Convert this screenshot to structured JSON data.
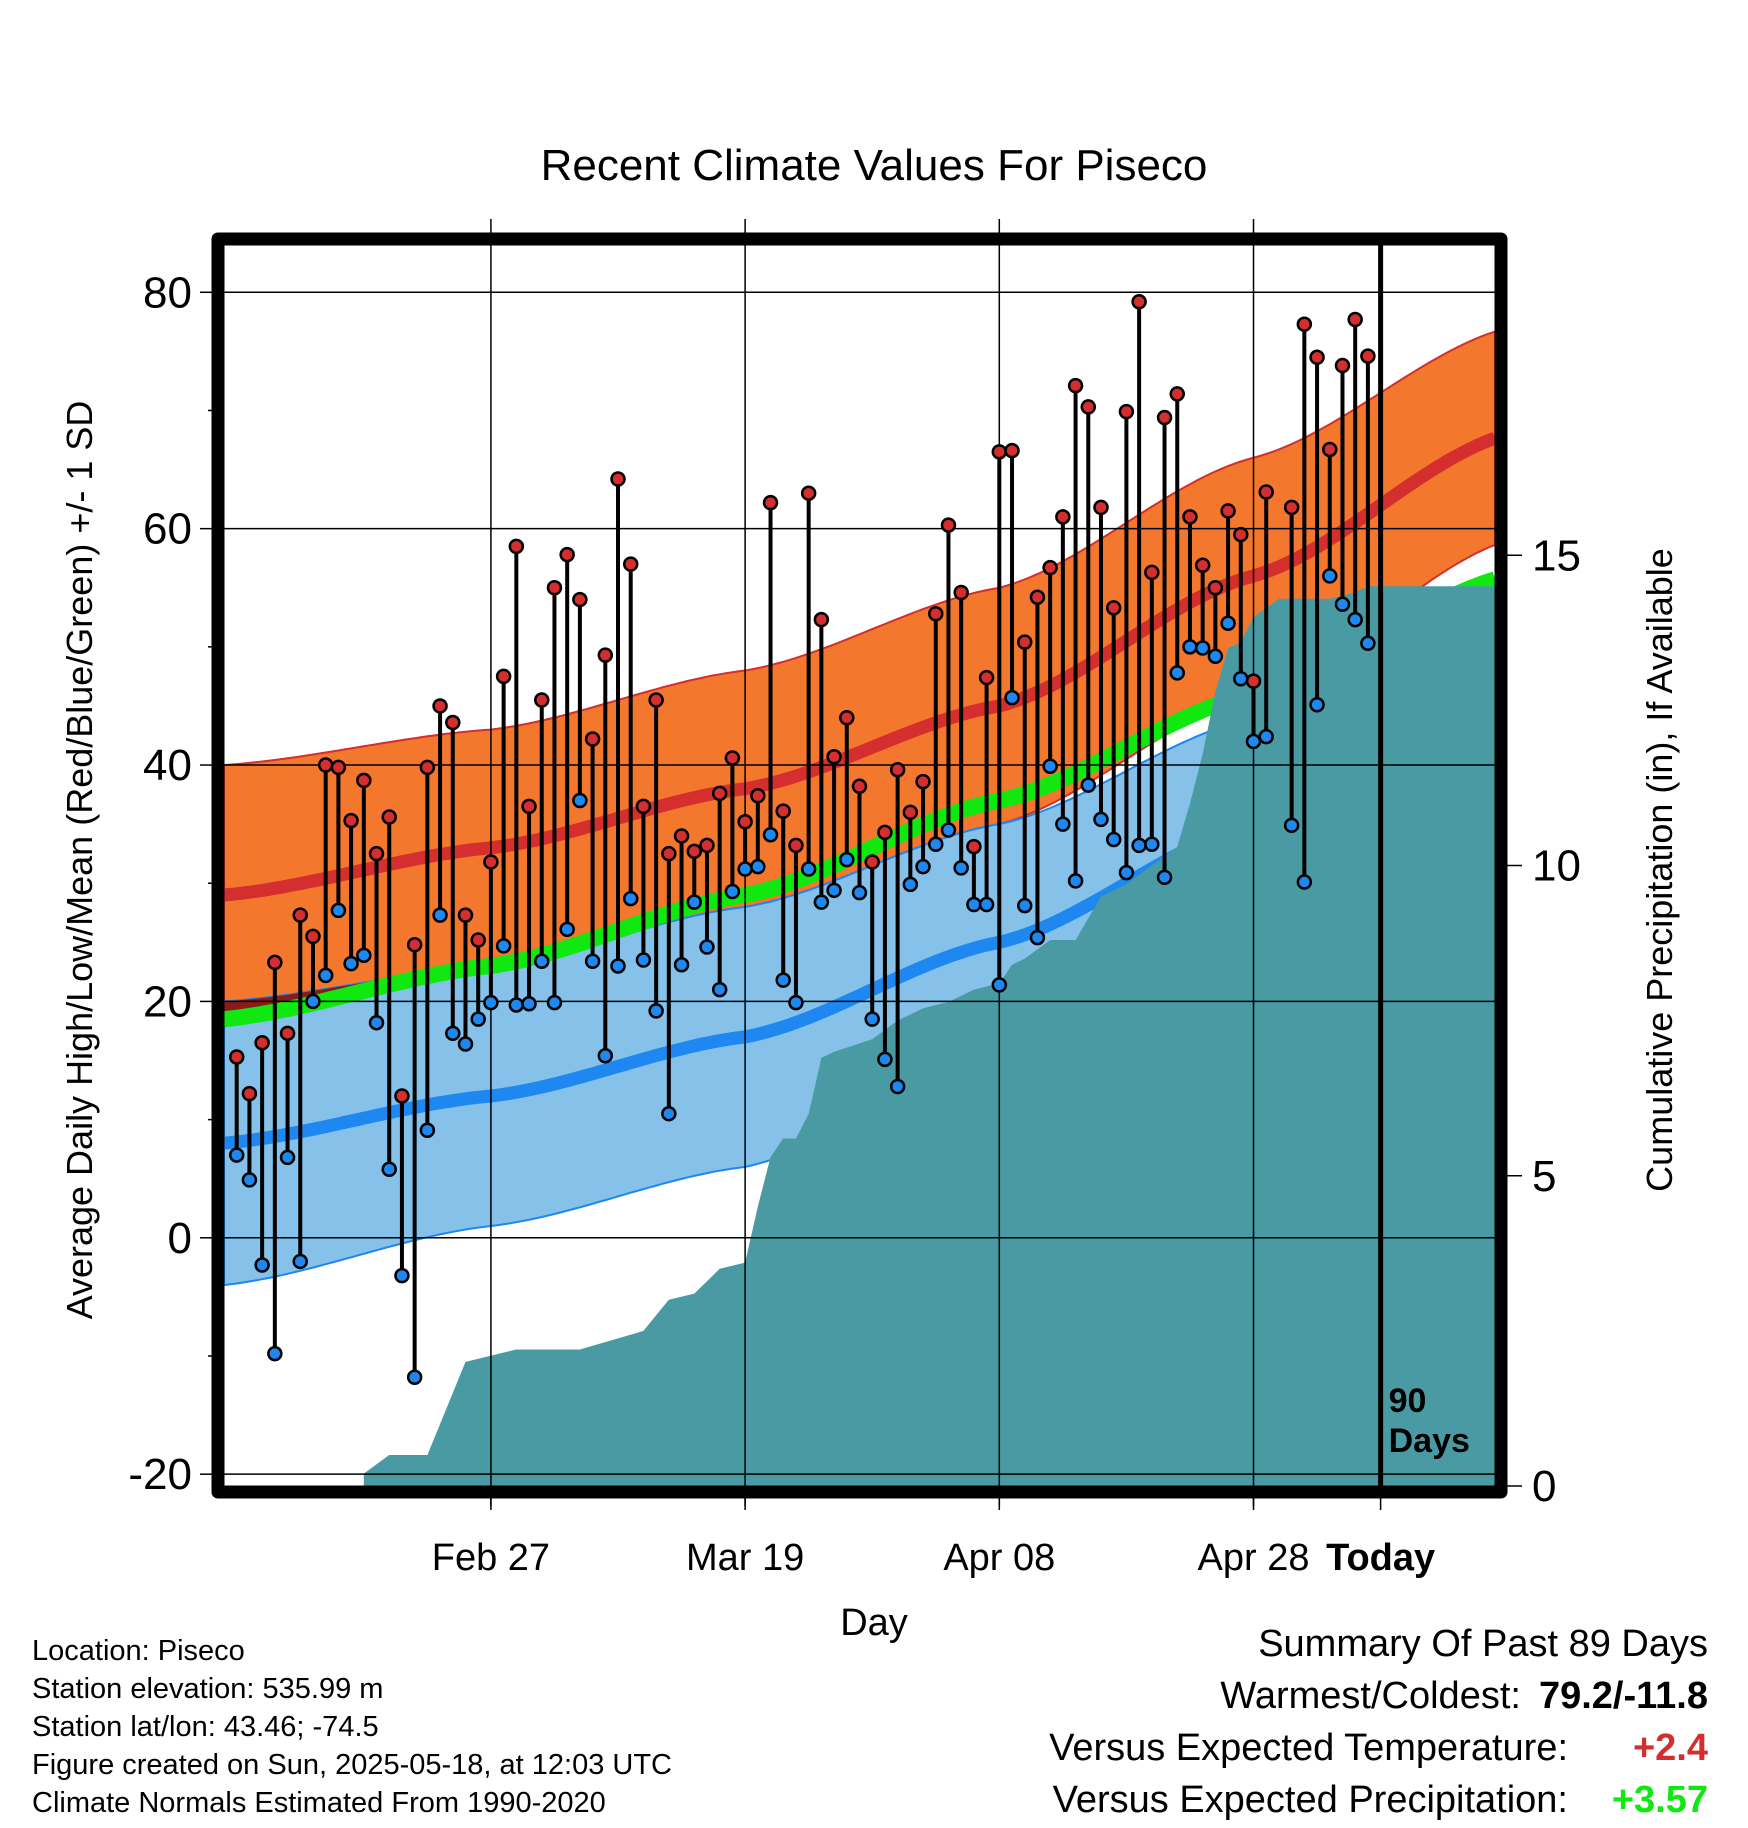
{
  "chart_data": {
    "type": "line",
    "title": "Recent Climate Values For Piseco",
    "xlabel": "Day",
    "ylabel": "Average Daily High/Low/Mean (Red/Blue/Green) +/- 1 SD",
    "y2label": "Cumulative Precipitation (in), If Available",
    "x_ticks": [
      "Feb 27",
      "Mar 19",
      "Apr 08",
      "Apr 28",
      "Today"
    ],
    "y_ticks": [
      "80",
      "60",
      "40",
      "20",
      "0",
      "-20"
    ],
    "y2_ticks": [
      "15",
      "10",
      "5",
      "0"
    ],
    "ylim": [
      -21,
      84
    ],
    "y2lim": [
      0,
      20
    ],
    "x_range_days": [
      -91,
      9
    ],
    "grid": true,
    "today_marker_label": [
      "90",
      "Days"
    ],
    "colors": {
      "high_band": "#f4772e",
      "high_mean": "#d42e2e",
      "overlap": "#8b1a1a",
      "low_band": "#85c1e8",
      "low_mean": "#1e88f0",
      "mean_normal": "#10e810",
      "precip": "#4a9aa4",
      "high_marker": "#d42e2e",
      "low_marker": "#1e88f0"
    },
    "normals": {
      "day": [
        -91,
        -70,
        -50,
        -30,
        -10,
        10
      ],
      "high_mean": [
        29,
        33,
        38,
        45,
        56,
        68
      ],
      "high_sd": [
        11,
        10,
        10,
        10,
        10,
        9
      ],
      "low_mean": [
        8,
        12,
        17,
        25,
        35,
        45
      ],
      "low_sd": [
        12,
        11,
        11,
        10,
        9,
        8
      ],
      "mean": [
        18.5,
        23,
        29,
        37,
        46,
        56
      ]
    },
    "series": [
      {
        "name": "High",
        "x": [
          -90,
          -89,
          -88,
          -87,
          -86,
          -85,
          -84,
          -83,
          -82,
          -81,
          -80,
          -79,
          -78,
          -77,
          -76,
          -75,
          -74,
          -73,
          -72,
          -71,
          -70,
          -69,
          -68,
          -67,
          -66,
          -65,
          -64,
          -63,
          -62,
          -61,
          -60,
          -59,
          -58,
          -57,
          -56,
          -55,
          -54,
          -53,
          -52,
          -51,
          -50,
          -49,
          -48,
          -47,
          -46,
          -45,
          -44,
          -43,
          -42,
          -41,
          -40,
          -39,
          -38,
          -37,
          -36,
          -35,
          -34,
          -33,
          -32,
          -31,
          -30,
          -29,
          -28,
          -27,
          -26,
          -25,
          -24,
          -23,
          -22,
          -21,
          -20,
          -19,
          -18,
          -17,
          -16,
          -15,
          -14,
          -13,
          -12,
          -11,
          -10,
          -9,
          -7,
          -6,
          -5,
          -4,
          -3,
          -2,
          -1
        ],
        "values": [
          15.3,
          12.2,
          16.5,
          23.3,
          17.3,
          27.3,
          25.5,
          40.0,
          39.8,
          35.3,
          38.7,
          32.5,
          35.6,
          12.0,
          24.8,
          39.8,
          45.0,
          43.6,
          27.3,
          25.2,
          31.8,
          47.5,
          58.5,
          36.5,
          45.5,
          55.0,
          57.8,
          54.0,
          42.2,
          49.3,
          64.2,
          57.0,
          36.5,
          45.5,
          32.5,
          34.0,
          32.7,
          33.2,
          37.6,
          40.6,
          35.2,
          37.4,
          62.2,
          36.1,
          33.2,
          63.0,
          52.3,
          40.7,
          44.0,
          38.2,
          31.8,
          34.3,
          39.6,
          36.0,
          38.6,
          52.8,
          60.3,
          54.6,
          33.1,
          47.4,
          66.5,
          66.6,
          50.4,
          54.2,
          56.7,
          61.0,
          72.1,
          70.3,
          61.8,
          53.3,
          69.9,
          79.2,
          56.3,
          69.4,
          71.4,
          61.0,
          56.9,
          55.0,
          61.5,
          59.5,
          47.1,
          63.1,
          61.8,
          77.3,
          74.5,
          66.7,
          73.8,
          77.7,
          74.6
        ]
      },
      {
        "name": "Low",
        "x": [
          -90,
          -89,
          -88,
          -87,
          -86,
          -85,
          -84,
          -83,
          -82,
          -81,
          -80,
          -79,
          -78,
          -77,
          -76,
          -75,
          -74,
          -73,
          -72,
          -71,
          -70,
          -69,
          -68,
          -67,
          -66,
          -65,
          -64,
          -63,
          -62,
          -61,
          -60,
          -59,
          -58,
          -57,
          -56,
          -55,
          -54,
          -53,
          -52,
          -51,
          -50,
          -49,
          -48,
          -47,
          -46,
          -45,
          -44,
          -43,
          -42,
          -41,
          -40,
          -39,
          -38,
          -37,
          -36,
          -35,
          -34,
          -33,
          -32,
          -31,
          -30,
          -29,
          -28,
          -27,
          -26,
          -25,
          -24,
          -23,
          -22,
          -21,
          -20,
          -19,
          -18,
          -17,
          -16,
          -15,
          -14,
          -13,
          -12,
          -11,
          -10,
          -9,
          -7,
          -6,
          -5,
          -4,
          -3,
          -2,
          -1
        ],
        "values": [
          7.0,
          4.9,
          -2.3,
          -9.8,
          6.8,
          -2.0,
          20.0,
          22.2,
          27.7,
          23.2,
          23.9,
          18.2,
          5.8,
          -3.2,
          -11.8,
          9.1,
          27.3,
          17.3,
          16.4,
          18.5,
          19.9,
          24.7,
          19.7,
          19.8,
          23.4,
          19.9,
          26.1,
          37.0,
          23.4,
          15.4,
          23.0,
          28.7,
          23.5,
          19.2,
          10.5,
          23.1,
          28.4,
          24.6,
          21.0,
          29.3,
          31.2,
          31.4,
          34.1,
          21.8,
          19.9,
          31.2,
          28.4,
          29.4,
          32.0,
          29.2,
          18.5,
          15.1,
          12.8,
          29.9,
          31.4,
          33.3,
          34.5,
          31.3,
          28.2,
          28.2,
          21.4,
          45.7,
          28.1,
          25.4,
          39.9,
          35.0,
          30.2,
          38.3,
          35.4,
          33.7,
          30.9,
          33.2,
          33.3,
          30.5,
          47.8,
          50.0,
          49.9,
          49.2,
          52.0,
          47.3,
          42.0,
          42.4,
          34.9,
          30.1,
          45.1,
          56.0,
          53.6,
          52.3,
          50.3
        ]
      }
    ],
    "precip_cumulative": {
      "day": [
        -80,
        -78,
        -75,
        -72,
        -68,
        -67,
        -65,
        -63,
        -58,
        -56,
        -54,
        -52,
        -50,
        -49,
        -48,
        -47,
        -46,
        -45,
        -44,
        -43,
        -40,
        -38,
        -36,
        -34,
        -32,
        -30,
        -29,
        -28,
        -26,
        -24,
        -22,
        -20,
        -18,
        -16,
        -15,
        -14,
        -13,
        -12,
        -11,
        -10,
        -8,
        -6,
        -4,
        -2,
        -1,
        9
      ],
      "values": [
        0.2,
        0.5,
        0.5,
        2.0,
        2.2,
        2.2,
        2.2,
        2.2,
        2.5,
        3.0,
        3.1,
        3.5,
        3.6,
        4.5,
        5.3,
        5.6,
        5.6,
        6.0,
        6.9,
        7.0,
        7.2,
        7.5,
        7.7,
        7.8,
        8.0,
        8.1,
        8.4,
        8.5,
        8.8,
        8.8,
        9.5,
        9.7,
        10.0,
        10.3,
        11.0,
        11.8,
        12.8,
        13.5,
        13.6,
        14.0,
        14.3,
        14.3,
        14.3,
        14.4,
        14.5,
        14.5
      ]
    }
  },
  "footer": {
    "location": "Location: Piseco",
    "elevation": "Station elevation: 535.99 m",
    "latlon": "Station lat/lon: 43.46; -74.5",
    "created": "Figure created on Sun, 2025-05-18, at 12:03 UTC",
    "normals": "Climate Normals Estimated From 1990-2020"
  },
  "summary": {
    "heading": "Summary Of Past 89 Days",
    "warmest_label": "Warmest/Coldest:",
    "warmest_value": "79.2/-11.8",
    "temp_label": "Versus Expected Temperature:",
    "temp_value": "+2.4",
    "temp_color": "#d42e2e",
    "precip_label": "Versus Expected Precipitation:",
    "precip_value": "+3.57",
    "precip_color": "#10e810"
  }
}
